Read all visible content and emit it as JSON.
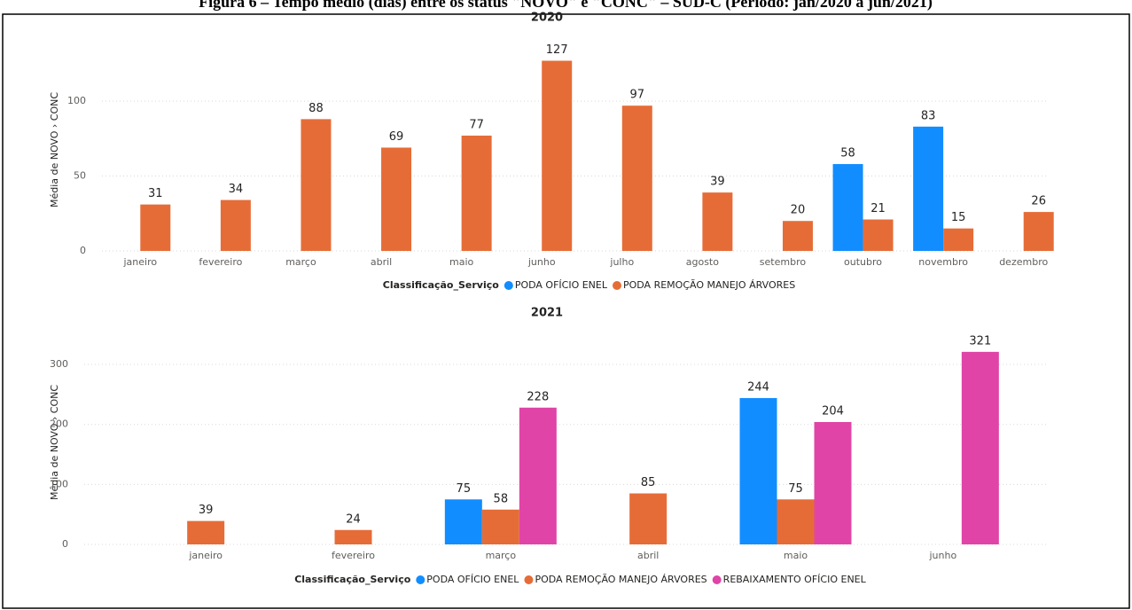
{
  "caption": "Figura 6 – Tempo médio (dias) entre os status \"NOVO\" e \"CONC\" – SUD-C (Período: jan/2020 a jun/2021)",
  "chart_data": [
    {
      "type": "bar",
      "title": "2020",
      "y_label": "Média de NOVO › CONC",
      "legend_title": "Classificação_Serviço",
      "categories": [
        "janeiro",
        "fevereiro",
        "março",
        "abril",
        "maio",
        "junho",
        "julho",
        "agosto",
        "setembro",
        "outubro",
        "novembro",
        "dezembro"
      ],
      "series": [
        {
          "name": "PODA OFÍCIO ENEL",
          "color": "#118DFF",
          "values": [
            null,
            null,
            null,
            null,
            null,
            null,
            null,
            null,
            null,
            58,
            83,
            null
          ]
        },
        {
          "name": "PODA REMOÇÃO MANEJO ÁRVORES",
          "color": "#E66C37",
          "values": [
            31,
            34,
            88,
            69,
            77,
            127,
            97,
            39,
            20,
            21,
            15,
            26
          ]
        }
      ],
      "ylim": [
        0,
        135
      ],
      "yticks": [
        0,
        50,
        100
      ],
      "grid": true
    },
    {
      "type": "bar",
      "title": "2021",
      "y_label": "Média de NOVO › CONC",
      "legend_title": "Classificação_Serviço",
      "categories": [
        "janeiro",
        "fevereiro",
        "março",
        "abril",
        "maio",
        "junho"
      ],
      "series": [
        {
          "name": "PODA OFÍCIO ENEL",
          "color": "#118DFF",
          "values": [
            null,
            null,
            75,
            null,
            244,
            null
          ]
        },
        {
          "name": "PODA REMOÇÃO MANEJO ÁRVORES",
          "color": "#E66C37",
          "values": [
            39,
            24,
            58,
            85,
            75,
            null
          ]
        },
        {
          "name": "REBAIXAMENTO OFÍCIO ENEL",
          "color": "#E044A7",
          "values": [
            null,
            null,
            228,
            null,
            204,
            321
          ]
        }
      ],
      "ylim": [
        0,
        340
      ],
      "yticks": [
        0,
        100,
        200,
        300
      ],
      "grid": true
    }
  ]
}
